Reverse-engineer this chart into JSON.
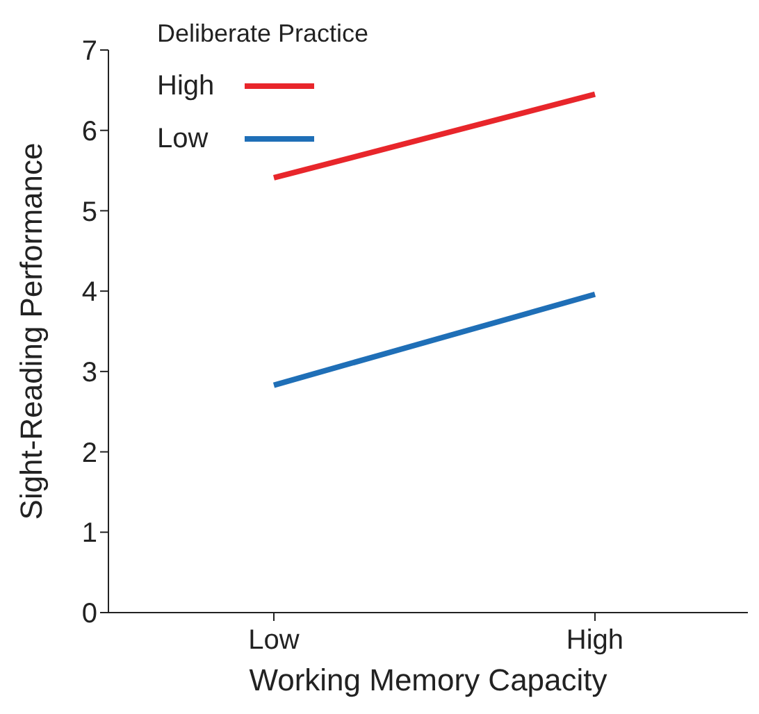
{
  "chart_data": {
    "type": "line",
    "legend_title": "Deliberate Practice",
    "xlabel": "Working Memory Capacity",
    "ylabel": "Sight-Reading Performance",
    "categories": [
      "Low",
      "High"
    ],
    "series": [
      {
        "name": "High",
        "color": "#e8262b",
        "values": [
          5.41,
          6.45
        ]
      },
      {
        "name": "Low",
        "color": "#1f6fb7",
        "values": [
          2.83,
          3.96
        ]
      }
    ],
    "ylim": [
      0,
      7
    ],
    "yticks": [
      0,
      1,
      2,
      3,
      4,
      5,
      6,
      7
    ],
    "grid": false,
    "legend": "top left",
    "marker": "none",
    "line_style": "solid"
  }
}
